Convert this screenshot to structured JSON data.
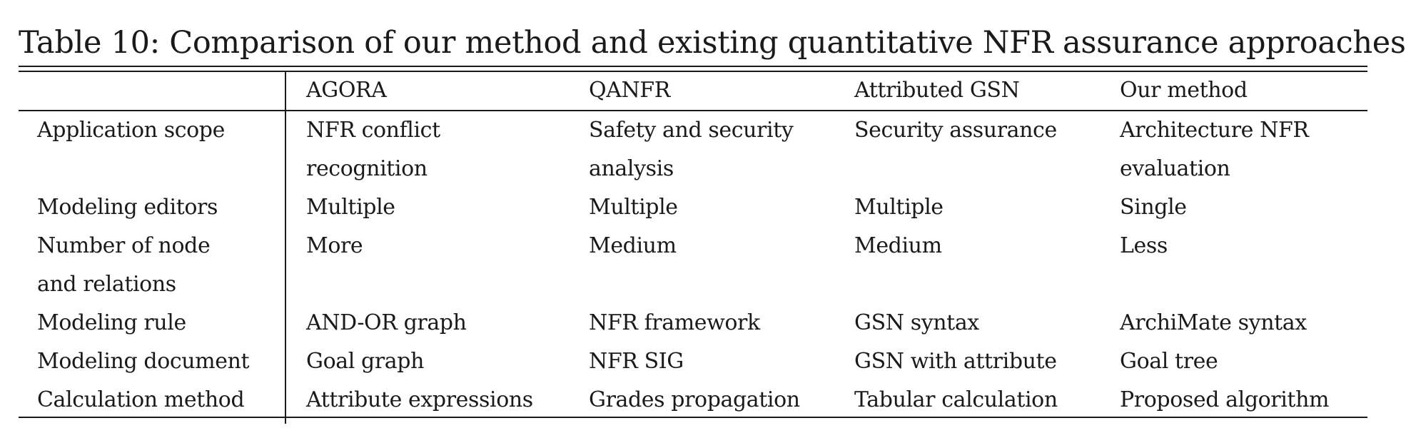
{
  "caption": "Table 10: Comparison of our method and existing quantitative NFR assurance approaches",
  "table": {
    "headers": [
      "",
      "AGORA",
      "QANFR",
      "Attributed GSN",
      "Our method"
    ],
    "rows": [
      {
        "label": [
          "Application scope"
        ],
        "cells": [
          [
            "NFR conflict",
            "recognition"
          ],
          [
            "Safety and security",
            "analysis"
          ],
          [
            "Security assurance"
          ],
          [
            "Architecture NFR",
            "evaluation"
          ]
        ]
      },
      {
        "label": [
          "Modeling editors"
        ],
        "cells": [
          [
            "Multiple"
          ],
          [
            "Multiple"
          ],
          [
            "Multiple"
          ],
          [
            "Single"
          ]
        ]
      },
      {
        "label": [
          "Number of node",
          "and relations"
        ],
        "cells": [
          [
            "More"
          ],
          [
            "Medium"
          ],
          [
            "Medium"
          ],
          [
            "Less"
          ]
        ]
      },
      {
        "label": [
          "Modeling rule"
        ],
        "cells": [
          [
            "AND-OR graph"
          ],
          [
            "NFR framework"
          ],
          [
            "GSN syntax"
          ],
          [
            "ArchiMate syntax"
          ]
        ]
      },
      {
        "label": [
          "Modeling document"
        ],
        "cells": [
          [
            "Goal graph"
          ],
          [
            "NFR SIG"
          ],
          [
            "GSN with attribute"
          ],
          [
            "Goal tree"
          ]
        ]
      },
      {
        "label": [
          "Calculation method"
        ],
        "cells": [
          [
            "Attribute expressions"
          ],
          [
            "Grades propagation"
          ],
          [
            "Tabular calculation"
          ],
          [
            "Proposed algorithm"
          ]
        ]
      }
    ]
  }
}
